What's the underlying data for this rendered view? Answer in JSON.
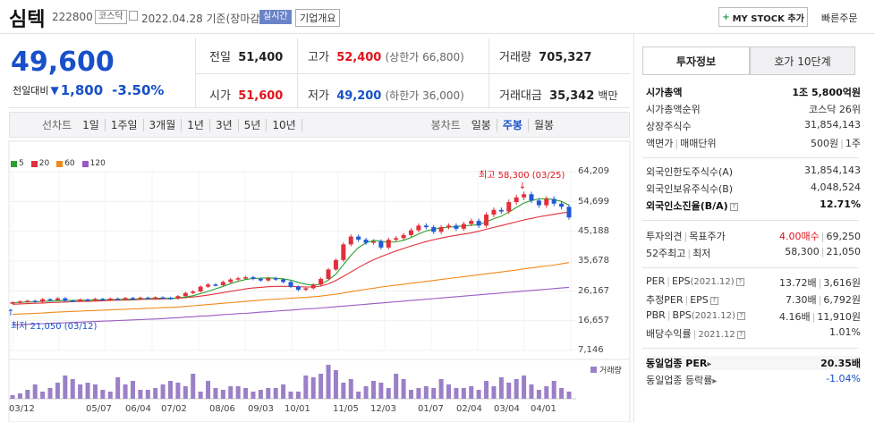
{
  "header": {
    "name": "심텍",
    "code": "222800",
    "market": "코스닥",
    "date": "2022.04.28 기준(장마감)",
    "realtime": "실시간",
    "corp_info": "기업개요",
    "mystock": "MY STOCK 추가",
    "quick_order": "빠른주문"
  },
  "price": {
    "current": "49,600",
    "change_label": "전일대비",
    "change": "1,800",
    "change_pct": "-3.50%"
  },
  "summary": {
    "prev_label": "전일",
    "prev": "51,400",
    "high_label": "고가",
    "high": "52,400",
    "upper_label": "(상한가 66,800)",
    "volume_label": "거래량",
    "volume": "705,327",
    "open_label": "시가",
    "open": "51,600",
    "low_label": "저가",
    "low": "49,200",
    "lower_label": "(하한가 36,000)",
    "amount_label": "거래대금",
    "amount": "35,342",
    "amount_unit": "백만"
  },
  "chart_tabs": {
    "line_label": "선차트",
    "items": [
      "1일",
      "1주일",
      "3개월",
      "1년",
      "3년",
      "5년",
      "10년"
    ],
    "candle_label": "봉차트",
    "candle_items": [
      "일봉",
      "주봉",
      "월봉"
    ],
    "active": "주봉"
  },
  "chart_data": {
    "type": "candlestick",
    "legend": [
      {
        "name": "5",
        "color": "#2ca02c"
      },
      {
        "name": "20",
        "color": "#e0303b"
      },
      {
        "name": "60",
        "color": "#f08a1c"
      },
      {
        "name": "120",
        "color": "#9b59c5"
      }
    ],
    "y_ticks": [
      "64,209",
      "54,699",
      "45,188",
      "35,678",
      "26,167",
      "16,657",
      "7,146"
    ],
    "ylim": [
      7146,
      64209
    ],
    "x_ticks": [
      "03/12",
      "05/07",
      "06/04",
      "07/02",
      "08/06",
      "09/03",
      "10/01",
      "11/05",
      "12/03",
      "01/07",
      "02/04",
      "03/04",
      "04/01"
    ],
    "high_annotation": "최고 58,300 (03/25)",
    "low_annotation": "최저 21,050 (03/12)",
    "volume_label": "거래량",
    "close": [
      22500,
      22800,
      23000,
      22700,
      23500,
      23200,
      23800,
      23000,
      22900,
      23400,
      23100,
      23600,
      23300,
      23700,
      23500,
      23900,
      23600,
      24000,
      23800,
      24100,
      23900,
      23700,
      24500,
      25500,
      26000,
      27500,
      28200,
      28000,
      29000,
      29800,
      30200,
      30500,
      30000,
      29500,
      30200,
      29800,
      29000,
      27500,
      26500,
      27000,
      28200,
      30000,
      33000,
      36000,
      41000,
      43500,
      42500,
      41500,
      42000,
      40000,
      42500,
      43000,
      44000,
      45500,
      47000,
      46500,
      45000,
      46500,
      47000,
      46000,
      47500,
      48500,
      47000,
      50500,
      52000,
      51500,
      54500,
      56000,
      57000,
      55000,
      53500,
      55500,
      54000,
      53000,
      49600
    ],
    "ma5": [
      22400,
      22500,
      22600,
      22700,
      22800,
      22900,
      23000,
      23100,
      23100,
      23200,
      23200,
      23300,
      23300,
      23400,
      23400,
      23500,
      23500,
      23600,
      23700,
      23800,
      23800,
      23800,
      23900,
      24200,
      24600,
      25300,
      26000,
      26800,
      27600,
      28500,
      29200,
      29800,
      30100,
      30200,
      30300,
      30200,
      30000,
      29600,
      28900,
      28300,
      28000,
      28300,
      29600,
      31500,
      34500,
      37500,
      40000,
      41500,
      42300,
      42000,
      41700,
      41800,
      42300,
      43200,
      44300,
      45300,
      45800,
      46300,
      46500,
      46700,
      46900,
      47100,
      47300,
      48200,
      49200,
      50000,
      51300,
      52800,
      54200,
      55000,
      55500,
      55600,
      55300,
      54700,
      53500
    ],
    "ma20": [
      21900,
      22000,
      22100,
      22200,
      22300,
      22400,
      22500,
      22600,
      22700,
      22800,
      22800,
      22900,
      23000,
      23100,
      23200,
      23200,
      23300,
      23400,
      23500,
      23500,
      23600,
      23700,
      23800,
      24000,
      24200,
      24500,
      24800,
      25200,
      25600,
      26000,
      26400,
      26800,
      27100,
      27300,
      27500,
      27600,
      27600,
      27600,
      27500,
      27400,
      27400,
      27700,
      28400,
      29500,
      30800,
      32200,
      33600,
      34900,
      36100,
      37100,
      38000,
      38900,
      39700,
      40500,
      41200,
      41900,
      42500,
      43000,
      43500,
      43900,
      44300,
      44700,
      45200,
      45800,
      46400,
      47000,
      47600,
      48200,
      48800,
      49300,
      49800,
      50200,
      50600,
      51000,
      51300
    ],
    "ma60": [
      18700,
      18800,
      18900,
      19000,
      19100,
      19300,
      19400,
      19500,
      19600,
      19700,
      19800,
      19900,
      20000,
      20100,
      20200,
      20300,
      20400,
      20500,
      20600,
      20700,
      20800,
      20900,
      21000,
      21200,
      21400,
      21600,
      21800,
      22000,
      22200,
      22400,
      22600,
      22800,
      23000,
      23200,
      23400,
      23500,
      23700,
      23800,
      24000,
      24100,
      24300,
      24500,
      24800,
      25100,
      25500,
      25900,
      26300,
      26700,
      27000,
      27400,
      27700,
      28000,
      28300,
      28600,
      28900,
      29200,
      29500,
      29800,
      30100,
      30400,
      30700,
      31000,
      31300,
      31600,
      31900,
      32200,
      32500,
      32800,
      33200,
      33500,
      33800,
      34100,
      34400,
      34800,
      35200
    ],
    "ma120": [
      15300,
      15400,
      15500,
      15600,
      15700,
      15800,
      15900,
      16000,
      16100,
      16200,
      16300,
      16400,
      16500,
      16600,
      16700,
      16800,
      16900,
      17000,
      17100,
      17200,
      17300,
      17500,
      17600,
      17800,
      17900,
      18100,
      18200,
      18400,
      18600,
      18700,
      18900,
      19000,
      19200,
      19400,
      19500,
      19700,
      19900,
      20000,
      20200,
      20400,
      20500,
      20700,
      20900,
      21100,
      21300,
      21500,
      21700,
      21900,
      22100,
      22300,
      22500,
      22700,
      22900,
      23100,
      23300,
      23500,
      23700,
      23900,
      24100,
      24300,
      24500,
      24700,
      24900,
      25100,
      25300,
      25500,
      25700,
      25900,
      26100,
      26300,
      26500,
      26700,
      26900,
      27100,
      27300
    ],
    "volume": [
      2,
      3,
      5,
      8,
      4,
      6,
      9,
      13,
      11,
      8,
      9,
      8,
      5,
      4,
      12,
      8,
      10,
      5,
      5,
      6,
      8,
      10,
      9,
      7,
      14,
      4,
      10,
      6,
      5,
      7,
      7,
      6,
      4,
      5,
      6,
      6,
      8,
      4,
      4,
      13,
      12,
      14,
      19,
      16,
      9,
      11,
      4,
      7,
      10,
      9,
      6,
      14,
      11,
      5,
      6,
      7,
      6,
      11,
      8,
      6,
      6,
      7,
      5,
      10,
      7,
      12,
      9,
      11,
      13,
      8,
      5,
      7,
      10,
      6,
      4
    ]
  },
  "right": {
    "tab_active": "투자정보",
    "tab_other": "호가 10단계",
    "rows": [
      {
        "k": "시가총액",
        "v": "1조 5,800억원"
      },
      {
        "k": "시가총액순위",
        "v": "코스닥 26위"
      },
      {
        "k": "상장주식수",
        "v": "31,854,143"
      },
      {
        "k1": "액면가",
        "k2": "매매단위",
        "v1": "500원",
        "v2": "1주"
      },
      {
        "k": "외국인한도주식수(A)",
        "v": "31,854,143"
      },
      {
        "k": "외국인보유주식수(B)",
        "v": "4,048,524"
      },
      {
        "k": "외국인소진율(B/A)",
        "v": "12.71%"
      },
      {
        "k1": "투자의견",
        "k2": "목표주가",
        "v1": "4.00매수",
        "v2": "69,250"
      },
      {
        "k1": "52주최고",
        "k2": "최저",
        "v1": "58,300",
        "v2": "21,050"
      },
      {
        "k1": "PER",
        "k2": "EPS",
        "k3": "(2021.12)",
        "v1": "13.72배",
        "v2": "3,616원"
      },
      {
        "k1": "추정PER",
        "k2": "EPS",
        "v1": "7.30배",
        "v2": "6,792원"
      },
      {
        "k1": "PBR",
        "k2": "BPS",
        "k3": "(2021.12)",
        "v1": "4.16배",
        "v2": "11,910원"
      },
      {
        "k1": "배당수익률",
        "k3": "2021.12",
        "v": "1.01%"
      },
      {
        "k": "동일업종 PER",
        "v": "20.35배"
      },
      {
        "k": "동일업종 등락률",
        "v": "-1.04%"
      }
    ]
  }
}
